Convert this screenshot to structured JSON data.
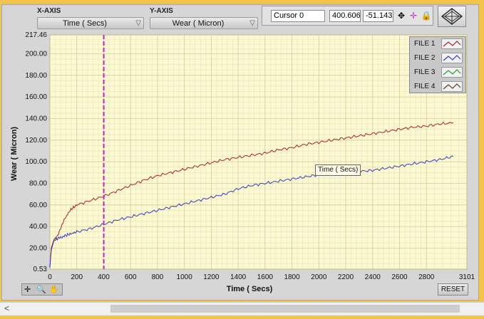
{
  "x_axis_control": {
    "label": "X-AXIS",
    "value": "Time ( Secs)"
  },
  "y_axis_control": {
    "label": "Y-AXIS",
    "value": "Wear ( Micron)"
  },
  "cursor_panel": {
    "name": "Cursor 0",
    "x_value": "400.606",
    "y_value": "-51.1432"
  },
  "legend": {
    "items": [
      {
        "label": "FILE 1",
        "color": "#a0262a"
      },
      {
        "label": "FILE 2",
        "color": "#3b3bb8"
      },
      {
        "label": "FILE 3",
        "color": "#2e9a2e"
      },
      {
        "label": "FILE 4",
        "color": "#5a3a1a"
      }
    ]
  },
  "buttons": {
    "reset": "RESET"
  },
  "tooltip": "Time ( Secs)",
  "icons": {
    "cursor_move": "crosshair-move-icon",
    "cursor_style": "cursor-style-icon",
    "lock": "lock-icon",
    "navigate": "diamond-navigation-icon"
  },
  "chart_data": {
    "type": "line",
    "xlabel": "Time ( Secs)",
    "ylabel": "Wear ( Micron)",
    "xlim": [
      0,
      3101
    ],
    "ylim": [
      0.53,
      217.46
    ],
    "x_ticks": [
      "0",
      "200",
      "400",
      "600",
      "800",
      "1000",
      "1200",
      "1400",
      "1600",
      "1800",
      "2000",
      "2200",
      "2400",
      "2600",
      "2800",
      "3101"
    ],
    "x_tick_values": [
      0,
      200,
      400,
      600,
      800,
      1000,
      1200,
      1400,
      1600,
      1800,
      2000,
      2200,
      2400,
      2600,
      2800,
      3101
    ],
    "y_ticks": [
      "0.53",
      "20.00",
      "40.00",
      "60.00",
      "80.00",
      "100.00",
      "120.00",
      "140.00",
      "160.00",
      "180.00",
      "200.00",
      "217.46"
    ],
    "y_tick_values": [
      0.53,
      20,
      40,
      60,
      80,
      100,
      120,
      140,
      160,
      180,
      200,
      217.46
    ],
    "grid": true,
    "legend_position": "top-right",
    "cursor": {
      "x": 400.606,
      "color": "#c81ec8"
    },
    "series": [
      {
        "name": "FILE 1",
        "color": "#a0262a",
        "x": [
          0,
          10,
          30,
          60,
          100,
          150,
          200,
          300,
          400,
          500,
          600,
          700,
          800,
          900,
          1000,
          1100,
          1200,
          1300,
          1400,
          1500,
          1600,
          1700,
          1800,
          1900,
          2000,
          2100,
          2200,
          2300,
          2400,
          2500,
          2600,
          2700,
          2800,
          2900,
          3000
        ],
        "y": [
          2,
          20,
          28,
          32,
          45,
          55,
          60,
          64,
          68,
          73,
          78,
          83,
          87,
          90,
          93,
          96,
          99,
          102,
          104,
          106,
          108,
          111,
          113,
          116,
          118,
          120,
          122,
          124,
          126,
          128,
          130,
          132,
          133,
          135,
          136
        ]
      },
      {
        "name": "FILE 2",
        "color": "#3b3bb8",
        "x": [
          0,
          10,
          30,
          60,
          100,
          150,
          200,
          300,
          400,
          500,
          600,
          700,
          800,
          900,
          1000,
          1100,
          1200,
          1300,
          1400,
          1500,
          1600,
          1700,
          1800,
          1900,
          2000,
          2100,
          2200,
          2300,
          2400,
          2500,
          2600,
          2700,
          2800,
          2900,
          3000
        ],
        "y": [
          2,
          18,
          27,
          29,
          31,
          33,
          35,
          38,
          42,
          46,
          49,
          52,
          55,
          58,
          61,
          64,
          67,
          70,
          75,
          78,
          80,
          82,
          84,
          86,
          88,
          89,
          90,
          91,
          92,
          94,
          96,
          98,
          100,
          102,
          105
        ]
      }
    ]
  }
}
